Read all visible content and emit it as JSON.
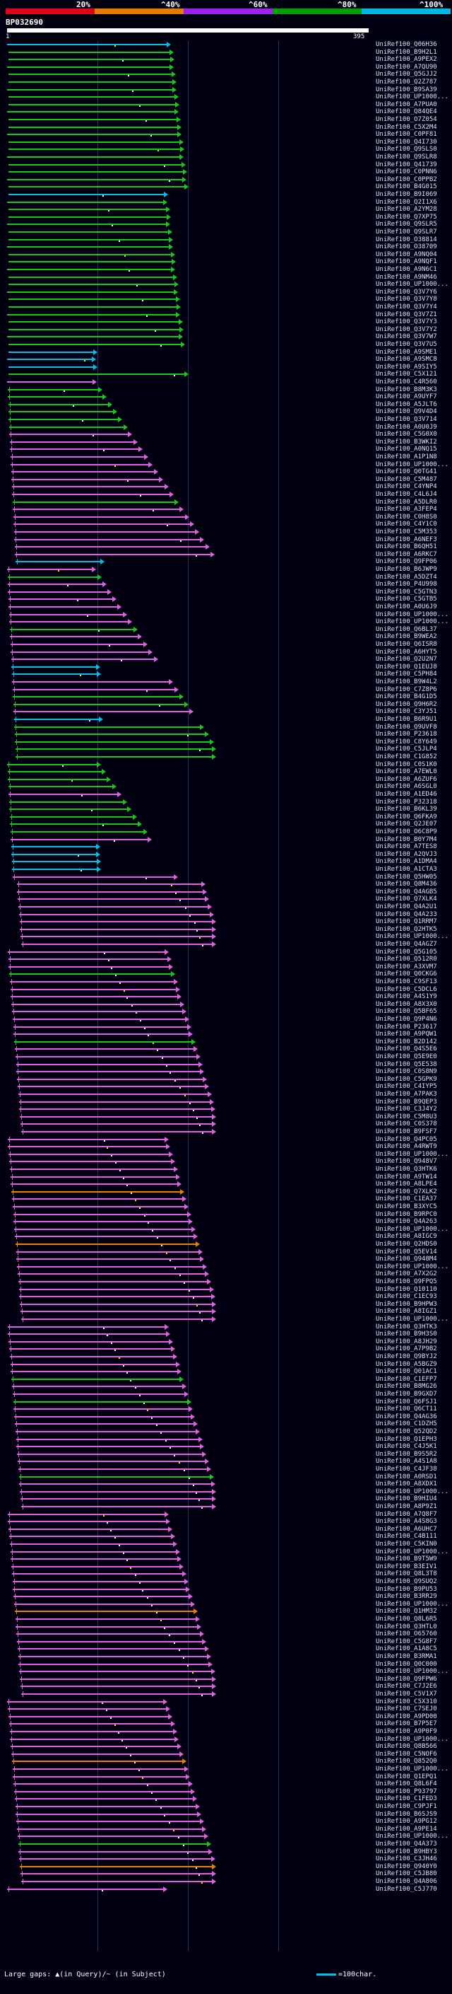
{
  "legend": {
    "labels": [
      "20%",
      "^40%",
      "^60%",
      "^80%",
      "^100%"
    ],
    "colors": [
      "#e0001a",
      "#e87a00",
      "#a020f0",
      "#00a000",
      "#00b8e0"
    ]
  },
  "query": {
    "name": "BP032690",
    "start": "1",
    "end": "395"
  },
  "palette": {
    "cyan": "#00c0e8",
    "green": "#18c818",
    "magenta": "#e060e0",
    "orange": "#e88000",
    "marker": "#ffffff",
    "marker_alt": "#ffe000"
  },
  "hits": [
    {
      "name": "UniRef100_Q06H36",
      "color": "cyan"
    },
    {
      "name": "UniRef100_B9H2L1",
      "color": "green"
    },
    {
      "name": "UniRef100_A9PEX2",
      "color": "green"
    },
    {
      "name": "UniRef100_A7QU90",
      "color": "green"
    },
    {
      "name": "UniRef100_Q5GJJ2",
      "color": "green"
    },
    {
      "name": "UniRef100_Q2Z787",
      "color": "green"
    },
    {
      "name": "UniRef100_B9SA39",
      "color": "green"
    },
    {
      "name": "UniRef100_UP1000...",
      "color": "green"
    },
    {
      "name": "UniRef100_A7PUA0",
      "color": "green"
    },
    {
      "name": "UniRef100_Q84QE4",
      "color": "green"
    },
    {
      "name": "UniRef100_O7Z054",
      "color": "green"
    },
    {
      "name": "UniRef100_C5X2M4",
      "color": "green"
    },
    {
      "name": "UniRef100_C0PF81",
      "color": "green"
    },
    {
      "name": "UniRef100_Q4I730",
      "color": "green"
    },
    {
      "name": "UniRef100_Q9SLS0",
      "color": "green"
    },
    {
      "name": "UniRef100_Q9SLR8",
      "color": "green"
    },
    {
      "name": "UniRef100_Q41739",
      "color": "green"
    },
    {
      "name": "UniRef100_C0PNN6",
      "color": "green"
    },
    {
      "name": "UniRef100_C0PPB2",
      "color": "green"
    },
    {
      "name": "UniRef100_B4G015",
      "color": "green"
    },
    {
      "name": "UniRef100_B9I069",
      "color": "cyan"
    },
    {
      "name": "UniRef100_Q2I1X6",
      "color": "green"
    },
    {
      "name": "UniRef100_A2YM28",
      "color": "green"
    },
    {
      "name": "UniRef100_Q7XP75",
      "color": "green"
    },
    {
      "name": "UniRef100_Q9SLR5",
      "color": "green"
    },
    {
      "name": "UniRef100_Q9SLR7",
      "color": "green"
    },
    {
      "name": "UniRef100_O38814",
      "color": "green"
    },
    {
      "name": "UniRef100_O38709",
      "color": "green"
    },
    {
      "name": "UniRef100_A9NQ04",
      "color": "green"
    },
    {
      "name": "UniRef100_A9NQF1",
      "color": "green"
    },
    {
      "name": "UniRef100_A9N6C1",
      "color": "green"
    },
    {
      "name": "UniRef100_A9NM46",
      "color": "green"
    },
    {
      "name": "UniRef100_UP1000...",
      "color": "green"
    },
    {
      "name": "UniRef100_Q3V7Y6",
      "color": "green"
    },
    {
      "name": "UniRef100_Q3V7Y8",
      "color": "green"
    },
    {
      "name": "UniRef100_Q3V7Y4",
      "color": "green"
    },
    {
      "name": "UniRef100_Q3V7Z1",
      "color": "green"
    },
    {
      "name": "UniRef100_Q3V7Y3",
      "color": "green"
    },
    {
      "name": "UniRef100_Q3V7Y2",
      "color": "green"
    },
    {
      "name": "UniRef100_Q3V7W7",
      "color": "green"
    },
    {
      "name": "UniRef100_Q3V7U5",
      "color": "green"
    },
    {
      "name": "UniRef100_A9SME1",
      "color": "cyan"
    },
    {
      "name": "UniRef100_A9SMC8",
      "color": "cyan"
    },
    {
      "name": "UniRef100_A9SIY5",
      "color": "cyan"
    },
    {
      "name": "UniRef100_C5X121",
      "color": "green"
    },
    {
      "name": "UniRef100_C4R560",
      "color": "magenta"
    },
    {
      "name": "UniRef100_B8M3K3",
      "color": "green"
    },
    {
      "name": "UniRef100_A9UYF7",
      "color": "green"
    },
    {
      "name": "UniRef100_A5JLT6",
      "color": "green"
    },
    {
      "name": "UniRef100_Q9V4D4",
      "color": "green"
    },
    {
      "name": "UniRef100_Q3V714",
      "color": "green"
    },
    {
      "name": "UniRef100_A0U0J9",
      "color": "green"
    },
    {
      "name": "UniRef100_C5G0X0",
      "color": "magenta"
    },
    {
      "name": "UniRef100_B3WKI2",
      "color": "magenta"
    },
    {
      "name": "UniRef100_A0NQ15",
      "color": "magenta"
    },
    {
      "name": "UniRef100_A1P1N8",
      "color": "magenta"
    },
    {
      "name": "UniRef100_UP1000...",
      "color": "magenta"
    },
    {
      "name": "UniRef100_Q0TG41",
      "color": "magenta"
    },
    {
      "name": "UniRef100_C5M487",
      "color": "magenta"
    },
    {
      "name": "UniRef100_C4YNP4",
      "color": "magenta"
    },
    {
      "name": "UniRef100_C4L6J4",
      "color": "magenta"
    },
    {
      "name": "UniRef100_A5DLR0",
      "color": "green"
    },
    {
      "name": "UniRef100_A3FEP4",
      "color": "magenta"
    },
    {
      "name": "UniRef100_C0H8S0",
      "color": "magenta"
    },
    {
      "name": "UniRef100_C4Y1C0",
      "color": "magenta"
    },
    {
      "name": "UniRef100_C5M353",
      "color": "magenta"
    },
    {
      "name": "UniRef100_A6NEF3",
      "color": "magenta"
    },
    {
      "name": "UniRef100_B6QH51",
      "color": "magenta"
    },
    {
      "name": "UniRef100_A6RKC7",
      "color": "magenta"
    },
    {
      "name": "UniRef100_Q9FP06",
      "color": "cyan"
    },
    {
      "name": "UniRef100_B6JWP9",
      "color": "magenta"
    },
    {
      "name": "UniRef100_A5DZT4",
      "color": "green"
    },
    {
      "name": "UniRef100_P4U998",
      "color": "magenta"
    },
    {
      "name": "UniRef100_C5GTN3",
      "color": "magenta"
    },
    {
      "name": "UniRef100_C5GTB5",
      "color": "magenta"
    },
    {
      "name": "UniRef100_A0U6J9",
      "color": "magenta"
    },
    {
      "name": "UniRef100_UP1000...",
      "color": "magenta"
    },
    {
      "name": "UniRef100_UP1000...",
      "color": "magenta"
    },
    {
      "name": "UniRef100_Q6BL37",
      "color": "green"
    },
    {
      "name": "UniRef100_B9WEA2",
      "color": "magenta"
    },
    {
      "name": "UniRef100_Q6ISR8",
      "color": "magenta"
    },
    {
      "name": "UniRef100_A6HYT5",
      "color": "magenta"
    },
    {
      "name": "UniRef100_Q2U2N7",
      "color": "magenta"
    },
    {
      "name": "UniRef100_Q1EUJ8",
      "color": "cyan"
    },
    {
      "name": "UniRef100_C5PH84",
      "color": "cyan"
    },
    {
      "name": "UniRef100_B9W4L2",
      "color": "magenta"
    },
    {
      "name": "UniRef100_C7Z8P6",
      "color": "magenta"
    },
    {
      "name": "UniRef100_B4G1D5",
      "color": "green"
    },
    {
      "name": "UniRef100_Q9H6R2",
      "color": "green"
    },
    {
      "name": "UniRef100_C3YJ51",
      "color": "magenta"
    },
    {
      "name": "UniRef100_B6R9U1",
      "color": "cyan"
    },
    {
      "name": "UniRef100_Q9UVF8",
      "color": "green"
    },
    {
      "name": "UniRef100_P23618",
      "color": "green"
    },
    {
      "name": "UniRef100_C8Y649",
      "color": "green"
    },
    {
      "name": "UniRef100_C5JLP4",
      "color": "green"
    },
    {
      "name": "UniRef100_C1G852",
      "color": "green"
    },
    {
      "name": "UniRef100_C0S1K0",
      "color": "green"
    },
    {
      "name": "UniRef100_A7EWL0",
      "color": "green"
    },
    {
      "name": "UniRef100_A6ZUF6",
      "color": "green"
    },
    {
      "name": "UniRef100_A6SGL0",
      "color": "green"
    },
    {
      "name": "UniRef100_A1ED46",
      "color": "magenta"
    },
    {
      "name": "UniRef100_P32318",
      "color": "green"
    },
    {
      "name": "UniRef100_B6KL39",
      "color": "green"
    },
    {
      "name": "UniRef100_Q6FKA9",
      "color": "green"
    },
    {
      "name": "UniRef100_Q2JE07",
      "color": "green"
    },
    {
      "name": "UniRef100_O6C8P9",
      "color": "green"
    },
    {
      "name": "UniRef100_B0Y7M4",
      "color": "magenta"
    },
    {
      "name": "UniRef100_A7TES8",
      "color": "cyan"
    },
    {
      "name": "UniRef100_A2QVJ3",
      "color": "cyan"
    },
    {
      "name": "UniRef100_A1DMA4",
      "color": "cyan"
    },
    {
      "name": "UniRef100_A1CTA3",
      "color": "cyan"
    },
    {
      "name": "UniRef100_Q5HW05",
      "color": "magenta"
    },
    {
      "name": "UniRef100_Q8M436",
      "color": "magenta"
    },
    {
      "name": "UniRef100_Q4AGB5",
      "color": "magenta"
    },
    {
      "name": "UniRef100_Q7XLK4",
      "color": "magenta"
    },
    {
      "name": "UniRef100_Q4A2U1",
      "color": "magenta"
    },
    {
      "name": "UniRef100_Q4A233",
      "color": "magenta"
    },
    {
      "name": "UniRef100_Q1RRM7",
      "color": "magenta"
    },
    {
      "name": "UniRef100_Q2HTK5",
      "color": "magenta"
    },
    {
      "name": "UniRef100_UP1000...",
      "color": "magenta"
    },
    {
      "name": "UniRef100_Q4AGZ7",
      "color": "magenta"
    },
    {
      "name": "UniRef100_Q5G105",
      "color": "magenta"
    },
    {
      "name": "UniRef100_Q512R0",
      "color": "magenta"
    },
    {
      "name": "UniRef100_A3XVM7",
      "color": "magenta"
    },
    {
      "name": "UniRef100_Q0CKG6",
      "color": "green"
    },
    {
      "name": "UniRef100_C9SF13",
      "color": "magenta"
    },
    {
      "name": "UniRef100_C5DCL6",
      "color": "magenta"
    },
    {
      "name": "UniRef100_A4S1Y9",
      "color": "magenta"
    },
    {
      "name": "UniRef100_A8X3X0",
      "color": "magenta"
    },
    {
      "name": "UniRef100_Q5BF65",
      "color": "magenta"
    },
    {
      "name": "UniRef100_Q9P4N6",
      "color": "magenta"
    },
    {
      "name": "UniRef100_P23617",
      "color": "magenta"
    },
    {
      "name": "UniRef100_A9PQW1",
      "color": "magenta"
    },
    {
      "name": "UniRef100_B2D142",
      "color": "green"
    },
    {
      "name": "UniRef100_Q4S5E6",
      "color": "magenta"
    },
    {
      "name": "UniRef100_Q5E9E0",
      "color": "magenta"
    },
    {
      "name": "UniRef100_Q5E538",
      "color": "magenta"
    },
    {
      "name": "UniRef100_C0S8N9",
      "color": "magenta"
    },
    {
      "name": "UniRef100_C5GPK9",
      "color": "magenta"
    },
    {
      "name": "UniRef100_C4IYP5",
      "color": "magenta"
    },
    {
      "name": "UniRef100_A7PAK3",
      "color": "magenta"
    },
    {
      "name": "UniRef100_B9QEP3",
      "color": "magenta"
    },
    {
      "name": "UniRef100_C3J4Y2",
      "color": "magenta"
    },
    {
      "name": "UniRef100_C5M8U3",
      "color": "magenta"
    },
    {
      "name": "UniRef100_C0S378",
      "color": "magenta"
    },
    {
      "name": "UniRef100_B9FSF7",
      "color": "magenta"
    },
    {
      "name": "UniRef100_Q4PC05",
      "color": "magenta"
    },
    {
      "name": "UniRef100_A4RWT9",
      "color": "magenta"
    },
    {
      "name": "UniRef100_UP1000...",
      "color": "magenta"
    },
    {
      "name": "UniRef100_Q948V7",
      "color": "magenta"
    },
    {
      "name": "UniRef100_Q3HTK6",
      "color": "magenta"
    },
    {
      "name": "UniRef100_A9TW14",
      "color": "magenta"
    },
    {
      "name": "UniRef100_A8LPE4",
      "color": "magenta"
    },
    {
      "name": "UniRef100_Q7XLK2",
      "color": "orange"
    },
    {
      "name": "UniRef100_C1EA37",
      "color": "magenta"
    },
    {
      "name": "UniRef100_B3XYC5",
      "color": "magenta"
    },
    {
      "name": "UniRef100_B9RPC0",
      "color": "magenta"
    },
    {
      "name": "UniRef100_Q4A263",
      "color": "magenta"
    },
    {
      "name": "UniRef100_UP1000...",
      "color": "magenta"
    },
    {
      "name": "UniRef100_A8IGC9",
      "color": "magenta"
    },
    {
      "name": "UniRef100_Q2HDS0",
      "color": "orange"
    },
    {
      "name": "UniRef100_Q5EV14",
      "color": "magenta"
    },
    {
      "name": "UniRef100_Q948M4",
      "color": "magenta"
    },
    {
      "name": "UniRef100_UP1000...",
      "color": "magenta"
    },
    {
      "name": "UniRef100_A7X2G2",
      "color": "magenta"
    },
    {
      "name": "UniRef100_Q9FPQ5",
      "color": "magenta"
    },
    {
      "name": "UniRef100_Q10110",
      "color": "magenta"
    },
    {
      "name": "UniRef100_C1EC93",
      "color": "magenta"
    },
    {
      "name": "UniRef100_B9HPW3",
      "color": "magenta"
    },
    {
      "name": "UniRef100_A8IGZ1",
      "color": "magenta"
    },
    {
      "name": "UniRef100_UP1000...",
      "color": "magenta"
    },
    {
      "name": "UniRef100_Q3HTK3",
      "color": "magenta"
    },
    {
      "name": "UniRef100_B9H3S0",
      "color": "magenta"
    },
    {
      "name": "UniRef100_A8JH29",
      "color": "magenta"
    },
    {
      "name": "UniRef100_A7P9B2",
      "color": "magenta"
    },
    {
      "name": "UniRef100_Q9BYJ2",
      "color": "magenta"
    },
    {
      "name": "UniRef100_A5BGZ9",
      "color": "magenta"
    },
    {
      "name": "UniRef100_Q01AC1",
      "color": "magenta"
    },
    {
      "name": "UniRef100_C1EFP7",
      "color": "green"
    },
    {
      "name": "UniRef100_B8MG26",
      "color": "magenta"
    },
    {
      "name": "UniRef100_B9GXD7",
      "color": "magenta"
    },
    {
      "name": "UniRef100_Q6FSJ1",
      "color": "green"
    },
    {
      "name": "UniRef100_Q6CT11",
      "color": "magenta"
    },
    {
      "name": "UniRef100_Q4AG36",
      "color": "magenta"
    },
    {
      "name": "UniRef100_C1DZH5",
      "color": "magenta"
    },
    {
      "name": "UniRef100_Q52QD2",
      "color": "magenta"
    },
    {
      "name": "UniRef100_Q1EPH3",
      "color": "magenta"
    },
    {
      "name": "UniRef100_C4J5K1",
      "color": "magenta"
    },
    {
      "name": "UniRef100_B9S5R2",
      "color": "magenta"
    },
    {
      "name": "UniRef100_A4S1A8",
      "color": "magenta"
    },
    {
      "name": "UniRef100_C4JF38",
      "color": "magenta"
    },
    {
      "name": "UniRef100_A0RSD1",
      "color": "green"
    },
    {
      "name": "UniRef100_A8XDX1",
      "color": "magenta"
    },
    {
      "name": "UniRef100_UP1000...",
      "color": "magenta"
    },
    {
      "name": "UniRef100_B9HIU4",
      "color": "magenta"
    },
    {
      "name": "UniRef100_A8P9Z1",
      "color": "magenta"
    },
    {
      "name": "UniRef100_A7Q8F7",
      "color": "magenta"
    },
    {
      "name": "UniRef100_A4S8G3",
      "color": "magenta"
    },
    {
      "name": "UniRef100_A6UHC7",
      "color": "magenta"
    },
    {
      "name": "UniRef100_C4B111",
      "color": "magenta"
    },
    {
      "name": "UniRef100_C5KIN0",
      "color": "magenta"
    },
    {
      "name": "UniRef100_UP1000...",
      "color": "magenta"
    },
    {
      "name": "UniRef100_B9T5W9",
      "color": "magenta"
    },
    {
      "name": "UniRef100_B3EIV1",
      "color": "magenta"
    },
    {
      "name": "UniRef100_Q8L3T8",
      "color": "magenta"
    },
    {
      "name": "UniRef100_Q9SUQ2",
      "color": "magenta"
    },
    {
      "name": "UniRef100_B9PU53",
      "color": "magenta"
    },
    {
      "name": "UniRef100_B3RR29",
      "color": "magenta"
    },
    {
      "name": "UniRef100_UP1000...",
      "color": "magenta"
    },
    {
      "name": "UniRef100_Q1HM32",
      "color": "orange"
    },
    {
      "name": "UniRef100_Q8L6R5",
      "color": "magenta"
    },
    {
      "name": "UniRef100_Q3HTL0",
      "color": "magenta"
    },
    {
      "name": "UniRef100_O65760",
      "color": "magenta"
    },
    {
      "name": "UniRef100_C5G8F7",
      "color": "magenta"
    },
    {
      "name": "UniRef100_A1A8C5",
      "color": "magenta"
    },
    {
      "name": "UniRef100_B3RMA1",
      "color": "magenta"
    },
    {
      "name": "UniRef100_Q0C000",
      "color": "magenta"
    },
    {
      "name": "UniRef100_UP1000...",
      "color": "magenta"
    },
    {
      "name": "UniRef100_Q9FPW6",
      "color": "magenta"
    },
    {
      "name": "UniRef100_C7J2E6",
      "color": "magenta"
    },
    {
      "name": "UniRef100_C5V1X7",
      "color": "magenta"
    },
    {
      "name": "UniRef100_C5X310",
      "color": "magenta"
    },
    {
      "name": "UniRef100_C7SEJ0",
      "color": "magenta"
    },
    {
      "name": "UniRef100_A9PD00",
      "color": "magenta"
    },
    {
      "name": "UniRef100_B7P5E7",
      "color": "magenta"
    },
    {
      "name": "UniRef100_A9P0F9",
      "color": "magenta"
    },
    {
      "name": "UniRef100_UP1000...",
      "color": "magenta"
    },
    {
      "name": "UniRef100_Q8B566",
      "color": "magenta"
    },
    {
      "name": "UniRef100_C5NOF6",
      "color": "magenta"
    },
    {
      "name": "UniRef100_Q852Q0",
      "color": "orange"
    },
    {
      "name": "UniRef100_UP1000...",
      "color": "magenta"
    },
    {
      "name": "UniRef100_Q1EPQ1",
      "color": "magenta"
    },
    {
      "name": "UniRef100_Q8L6F4",
      "color": "magenta"
    },
    {
      "name": "UniRef100_P93797",
      "color": "magenta"
    },
    {
      "name": "UniRef100_C1FED3",
      "color": "magenta"
    },
    {
      "name": "UniRef100_C9PJF1",
      "color": "magenta"
    },
    {
      "name": "UniRef100_B6SJS9",
      "color": "magenta"
    },
    {
      "name": "UniRef100_A9PG12",
      "color": "magenta"
    },
    {
      "name": "UniRef100_A9PE14",
      "color": "magenta"
    },
    {
      "name": "UniRef100_UP1000...",
      "color": "magenta"
    },
    {
      "name": "UniRef100_Q4A373",
      "color": "green"
    },
    {
      "name": "UniRef100_B9HBY3",
      "color": "magenta"
    },
    {
      "name": "UniRef100_C3JH46",
      "color": "magenta"
    },
    {
      "name": "UniRef100_Q940Y0",
      "color": "orange"
    },
    {
      "name": "UniRef100_C5JB80",
      "color": "magenta"
    },
    {
      "name": "UniRef100_Q4A806",
      "color": "magenta"
    },
    {
      "name": "UniRef100_C5J770",
      "color": "magenta"
    }
  ],
  "footer": {
    "gaps_text": "Large gaps: ▲(in Query)/~ (in Subject)",
    "scale_text": "=100char."
  }
}
